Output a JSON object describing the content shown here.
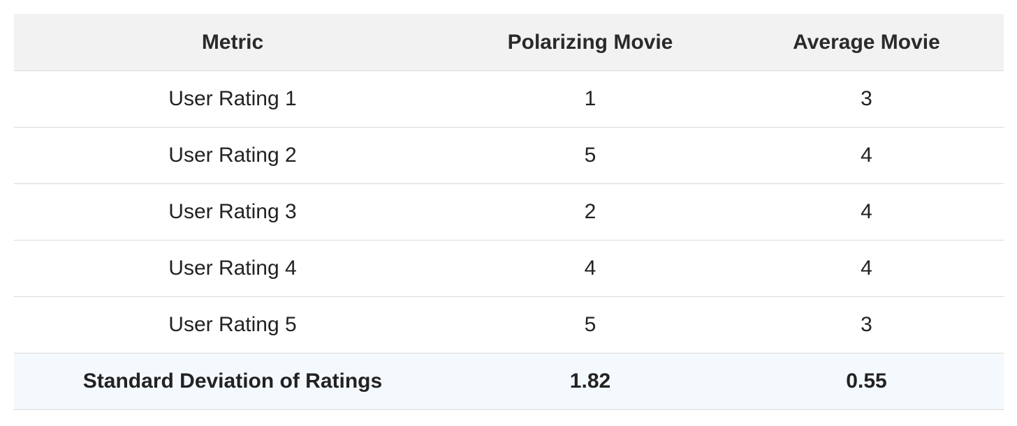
{
  "table": {
    "header": [
      "Metric",
      "Polarizing Movie",
      "Average Movie"
    ],
    "rows": [
      [
        "User Rating 1",
        1,
        3
      ],
      [
        "User Rating 2",
        5,
        4
      ],
      [
        "User Rating 3",
        2,
        4
      ],
      [
        "User Rating 4",
        4,
        4
      ],
      [
        "User Rating 5",
        5,
        3
      ],
      [
        "Standard Deviation of Ratings",
        1.82,
        0.55
      ]
    ]
  }
}
